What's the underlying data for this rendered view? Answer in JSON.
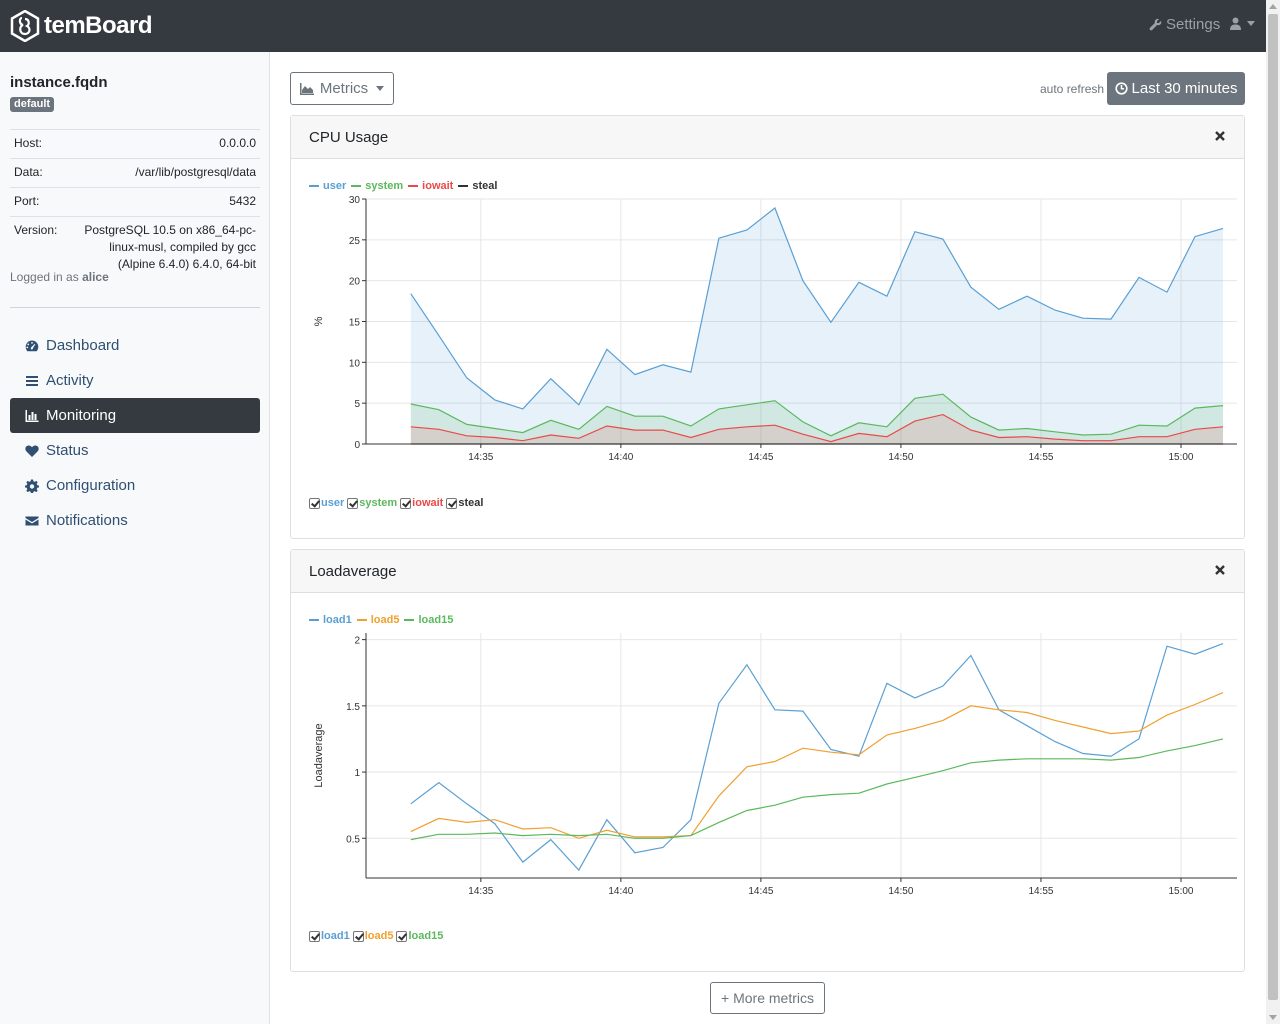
{
  "navbar": {
    "brand": "temBoard",
    "settings_label": "Settings",
    "icons": {
      "settings": "wrench-icon",
      "user": "user-icon"
    }
  },
  "sidebar": {
    "instance_name": "instance.fqdn",
    "environment_badge": "default",
    "info": [
      {
        "label": "Host:",
        "value": "0.0.0.0"
      },
      {
        "label": "Data:",
        "value": "/var/lib/postgresql/data"
      },
      {
        "label": "Port:",
        "value": "5432"
      },
      {
        "label": "Version:",
        "value": "PostgreSQL 10.5 on x86_64-pc-linux-musl, compiled by gcc (Alpine 6.4.0) 6.4.0, 64-bit"
      }
    ],
    "logged_prefix": "Logged in as",
    "username": "alice",
    "nav": [
      {
        "label": "Dashboard",
        "icon": "dashboard-icon",
        "active": false
      },
      {
        "label": "Activity",
        "icon": "list-icon",
        "active": false
      },
      {
        "label": "Monitoring",
        "icon": "bar-chart-icon",
        "active": true
      },
      {
        "label": "Status",
        "icon": "heart-icon",
        "active": false
      },
      {
        "label": "Configuration",
        "icon": "gear-icon",
        "active": false
      },
      {
        "label": "Notifications",
        "icon": "envelope-icon",
        "active": false
      }
    ]
  },
  "toolbar": {
    "metrics_label": "Metrics",
    "auto_refresh": "auto refresh",
    "range_label": "Last 30 minutes"
  },
  "more_metrics_label": "+ More metrics",
  "colors": {
    "blue": "#5a9fd4",
    "green": "#5cb85c",
    "red": "#e84a4a",
    "black": "#333333",
    "orange": "#f0a030",
    "navbar": "#343a40"
  },
  "chart_data": [
    {
      "type": "area",
      "title": "CPU Usage",
      "ylabel": "%",
      "ylim": [
        0,
        30
      ],
      "yticks": [
        0,
        5,
        10,
        15,
        20,
        25,
        30
      ],
      "xticks": [
        "14:35",
        "14:40",
        "14:45",
        "14:50",
        "14:55",
        "15:00"
      ],
      "x_minutes": [
        32.5,
        33.5,
        34.5,
        35.5,
        36.5,
        37.5,
        38.5,
        39.5,
        40.5,
        41.5,
        42.5,
        43.5,
        44.5,
        45.5,
        46.5,
        47.5,
        48.5,
        49.5,
        50.5,
        51.5,
        52.5,
        53.5,
        54.5,
        55.5,
        56.5,
        57.5,
        58.5,
        59.5,
        60.5,
        61.5
      ],
      "grid": true,
      "legend": "top-left",
      "series": [
        {
          "name": "user",
          "color": "#5a9fd4",
          "values": [
            18.4,
            13.3,
            8.1,
            5.4,
            4.3,
            8.0,
            4.8,
            11.6,
            8.5,
            9.7,
            8.8,
            25.2,
            26.2,
            28.9,
            20.0,
            14.9,
            19.8,
            18.1,
            26.0,
            25.1,
            19.2,
            16.5,
            18.1,
            16.4,
            15.4,
            15.3,
            20.4,
            18.6,
            25.4,
            26.4
          ]
        },
        {
          "name": "system",
          "color": "#5cb85c",
          "values": [
            4.9,
            4.2,
            2.4,
            1.9,
            1.4,
            2.9,
            1.8,
            4.6,
            3.4,
            3.4,
            2.2,
            4.3,
            4.8,
            5.3,
            2.7,
            1.0,
            2.6,
            2.1,
            5.6,
            6.1,
            3.3,
            1.7,
            1.9,
            1.5,
            1.1,
            1.2,
            2.3,
            2.2,
            4.4,
            4.7
          ]
        },
        {
          "name": "iowait",
          "color": "#e84a4a",
          "values": [
            2.1,
            1.8,
            1.0,
            0.8,
            0.4,
            1.1,
            0.7,
            2.2,
            1.7,
            1.7,
            0.8,
            1.8,
            2.1,
            2.3,
            1.2,
            0.3,
            1.3,
            0.9,
            2.8,
            3.6,
            1.7,
            0.8,
            0.9,
            0.6,
            0.4,
            0.4,
            0.9,
            0.9,
            1.8,
            2.1
          ]
        },
        {
          "name": "steal",
          "color": "#333333",
          "values": [
            0,
            0,
            0,
            0,
            0,
            0,
            0,
            0,
            0,
            0,
            0,
            0,
            0,
            0,
            0,
            0,
            0,
            0,
            0,
            0,
            0,
            0,
            0,
            0,
            0,
            0,
            0,
            0,
            0,
            0
          ]
        }
      ]
    },
    {
      "type": "line",
      "title": "Loadaverage",
      "ylabel": "Loadaverage",
      "ylim": [
        0.2,
        2.05
      ],
      "yticks": [
        0.5,
        1,
        1.5,
        2
      ],
      "xticks": [
        "14:35",
        "14:40",
        "14:45",
        "14:50",
        "14:55",
        "15:00"
      ],
      "x_minutes": [
        32.5,
        33.5,
        34.5,
        35.5,
        36.5,
        37.5,
        38.5,
        39.5,
        40.5,
        41.5,
        42.5,
        43.5,
        44.5,
        45.5,
        46.5,
        47.5,
        48.5,
        49.5,
        50.5,
        51.5,
        52.5,
        53.5,
        54.5,
        55.5,
        56.5,
        57.5,
        58.5,
        59.5,
        60.5,
        61.5
      ],
      "grid": true,
      "legend": "top-left",
      "series": [
        {
          "name": "load1",
          "color": "#5a9fd4",
          "values": [
            0.76,
            0.92,
            0.76,
            0.61,
            0.32,
            0.49,
            0.26,
            0.64,
            0.39,
            0.43,
            0.64,
            1.52,
            1.81,
            1.47,
            1.46,
            1.17,
            1.12,
            1.67,
            1.56,
            1.65,
            1.88,
            1.47,
            1.35,
            1.23,
            1.14,
            1.12,
            1.25,
            1.95,
            1.89,
            1.97
          ]
        },
        {
          "name": "load5",
          "color": "#f0a030",
          "values": [
            0.55,
            0.65,
            0.62,
            0.64,
            0.57,
            0.58,
            0.5,
            0.56,
            0.51,
            0.51,
            0.52,
            0.82,
            1.04,
            1.08,
            1.18,
            1.15,
            1.13,
            1.28,
            1.33,
            1.39,
            1.5,
            1.47,
            1.45,
            1.39,
            1.34,
            1.29,
            1.31,
            1.43,
            1.51,
            1.6
          ]
        },
        {
          "name": "load15",
          "color": "#5cb85c",
          "values": [
            0.49,
            0.53,
            0.53,
            0.54,
            0.52,
            0.53,
            0.52,
            0.53,
            0.5,
            0.5,
            0.52,
            0.62,
            0.71,
            0.75,
            0.81,
            0.83,
            0.84,
            0.91,
            0.96,
            1.01,
            1.07,
            1.09,
            1.1,
            1.1,
            1.1,
            1.09,
            1.11,
            1.16,
            1.2,
            1.25
          ]
        }
      ]
    }
  ]
}
